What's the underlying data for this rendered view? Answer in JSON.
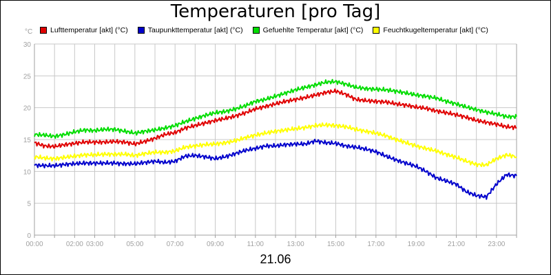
{
  "chart_data": {
    "type": "line",
    "title": "Temperaturen [pro Tag]",
    "xlabel": "21.06",
    "ylabel": "°C",
    "ylim": [
      0,
      30
    ],
    "xlim_hours": [
      0,
      24
    ],
    "yticks": [
      "0",
      "5",
      "10",
      "15",
      "20",
      "25",
      "30"
    ],
    "xticks": [
      {
        "h": 0,
        "label": "00:00"
      },
      {
        "h": 2,
        "label": "02:00"
      },
      {
        "h": 3,
        "label": "03:00"
      },
      {
        "h": 5,
        "label": "05:00"
      },
      {
        "h": 7,
        "label": "07:00"
      },
      {
        "h": 9,
        "label": "09:00"
      },
      {
        "h": 11,
        "label": "11:00"
      },
      {
        "h": 13,
        "label": "13:00"
      },
      {
        "h": 15,
        "label": "15:00"
      },
      {
        "h": 17,
        "label": "17:00"
      },
      {
        "h": 19,
        "label": "19:00"
      },
      {
        "h": 21,
        "label": "21:00"
      },
      {
        "h": 23,
        "label": "23:00"
      }
    ],
    "grid": true,
    "legend_position": "top",
    "series": [
      {
        "name": "Lufttemperatur [akt] (°C)",
        "color": "#e00000",
        "x": [
          0,
          0.5,
          1,
          1.5,
          2,
          2.5,
          3,
          3.5,
          4,
          4.5,
          5,
          5.5,
          6,
          6.5,
          7,
          7.5,
          8,
          8.5,
          9,
          9.5,
          10,
          10.5,
          11,
          11.5,
          12,
          12.5,
          13,
          13.5,
          14,
          14.5,
          15,
          15.5,
          16,
          16.5,
          17,
          17.5,
          18,
          18.5,
          19,
          19.5,
          20,
          20.5,
          21,
          21.5,
          22,
          22.5,
          23,
          23.5,
          24
        ],
        "values": [
          14.5,
          14.0,
          13.9,
          14.2,
          14.4,
          14.6,
          14.6,
          14.6,
          14.7,
          14.6,
          14.3,
          14.7,
          15.2,
          15.8,
          16.1,
          16.8,
          17.2,
          17.6,
          18.0,
          18.3,
          18.7,
          19.2,
          19.8,
          20.2,
          20.6,
          21.0,
          21.3,
          21.6,
          22.0,
          22.4,
          22.6,
          22.1,
          21.3,
          21.1,
          21.0,
          20.9,
          20.6,
          20.4,
          20.1,
          19.9,
          19.5,
          19.2,
          18.9,
          18.5,
          18.0,
          17.7,
          17.4,
          17.0,
          16.9
        ]
      },
      {
        "name": "Taupunkttemperatur [akt] (°C)",
        "color": "#0000cc",
        "x": [
          0,
          0.5,
          1,
          1.5,
          2,
          2.5,
          3,
          3.5,
          4,
          4.5,
          5,
          5.5,
          6,
          6.5,
          7,
          7.5,
          8,
          8.5,
          9,
          9.5,
          10,
          10.5,
          11,
          11.5,
          12,
          12.5,
          13,
          13.5,
          14,
          14.5,
          15,
          15.5,
          16,
          16.5,
          17,
          17.5,
          18,
          18.5,
          19,
          19.5,
          20,
          20.5,
          21,
          21.5,
          22,
          22.5,
          23,
          23.5,
          24
        ],
        "values": [
          11.0,
          10.9,
          10.9,
          11.1,
          11.2,
          11.3,
          11.3,
          11.3,
          11.3,
          11.2,
          11.2,
          11.4,
          11.6,
          11.4,
          11.6,
          12.4,
          12.5,
          12.3,
          12.0,
          12.3,
          12.8,
          13.3,
          13.6,
          14.0,
          14.0,
          14.2,
          14.3,
          14.3,
          14.8,
          14.5,
          14.4,
          14.0,
          13.8,
          13.5,
          13.1,
          12.4,
          11.8,
          11.3,
          10.8,
          10.0,
          9.0,
          8.5,
          8.0,
          6.8,
          6.2,
          6.0,
          8.0,
          9.5,
          9.3
        ]
      },
      {
        "name": "Gefuehlte Temperatur [akt] (°C)",
        "color": "#00dd00",
        "x": [
          0,
          0.5,
          1,
          1.5,
          2,
          2.5,
          3,
          3.5,
          4,
          4.5,
          5,
          5.5,
          6,
          6.5,
          7,
          7.5,
          8,
          8.5,
          9,
          9.5,
          10,
          10.5,
          11,
          11.5,
          12,
          12.5,
          13,
          13.5,
          14,
          14.5,
          15,
          15.5,
          16,
          16.5,
          17,
          17.5,
          18,
          18.5,
          19,
          19.5,
          20,
          20.5,
          21,
          21.5,
          22,
          22.5,
          23,
          23.5,
          24
        ],
        "values": [
          15.8,
          15.7,
          15.5,
          15.8,
          16.2,
          16.5,
          16.4,
          16.6,
          16.6,
          16.3,
          16.0,
          16.3,
          16.5,
          16.8,
          17.2,
          17.8,
          18.3,
          18.8,
          19.2,
          19.4,
          19.8,
          20.3,
          21.0,
          21.3,
          21.8,
          22.3,
          22.8,
          23.2,
          23.6,
          24.0,
          24.1,
          23.7,
          23.2,
          23.0,
          22.9,
          22.8,
          22.6,
          22.3,
          22.0,
          21.8,
          21.5,
          21.0,
          20.6,
          20.1,
          19.7,
          19.3,
          19.0,
          18.6,
          18.6
        ]
      },
      {
        "name": "Feuchtkugeltemperatur [akt] (°C)",
        "color": "#ffff00",
        "x": [
          0,
          0.5,
          1,
          1.5,
          2,
          2.5,
          3,
          3.5,
          4,
          4.5,
          5,
          5.5,
          6,
          6.5,
          7,
          7.5,
          8,
          8.5,
          9,
          9.5,
          10,
          10.5,
          11,
          11.5,
          12,
          12.5,
          13,
          13.5,
          14,
          14.5,
          15,
          15.5,
          16,
          16.5,
          17,
          17.5,
          18,
          18.5,
          19,
          19.5,
          20,
          20.5,
          21,
          21.5,
          22,
          22.5,
          23,
          23.5,
          24
        ],
        "values": [
          12.3,
          12.1,
          12.0,
          12.2,
          12.4,
          12.6,
          12.6,
          12.7,
          12.7,
          12.7,
          12.5,
          12.8,
          13.0,
          13.0,
          13.2,
          13.8,
          14.0,
          14.2,
          14.3,
          14.5,
          14.8,
          15.3,
          15.7,
          16.0,
          16.3,
          16.5,
          16.7,
          16.9,
          17.2,
          17.3,
          17.2,
          17.0,
          16.6,
          16.3,
          16.0,
          15.6,
          15.0,
          14.5,
          14.0,
          13.6,
          13.2,
          12.7,
          12.2,
          11.6,
          11.1,
          11.0,
          12.0,
          12.6,
          12.3
        ]
      }
    ]
  }
}
